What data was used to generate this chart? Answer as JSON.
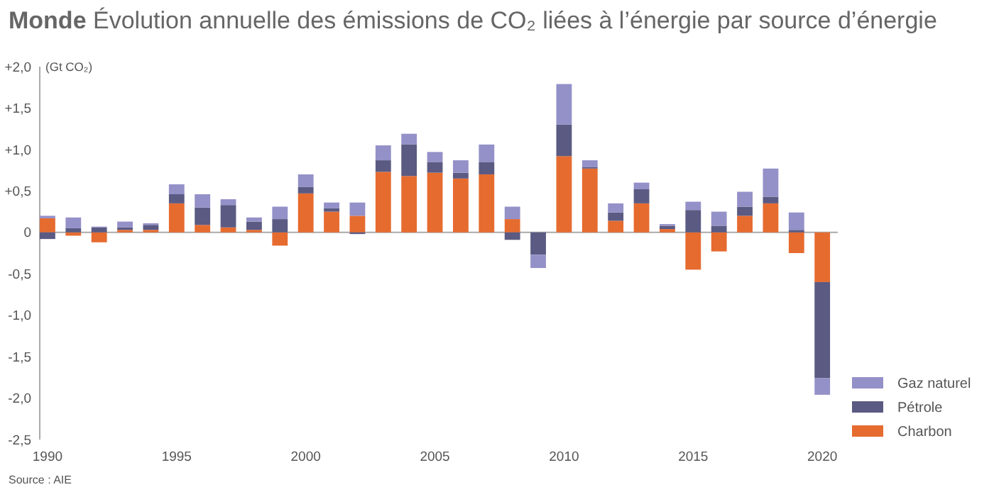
{
  "chart_data": {
    "type": "bar",
    "stacked": true,
    "title": "Monde",
    "subtitle": "Évolution annuelle des émissions de CO₂ liées à l’énergie par source d’énergie",
    "ylabel": "(Gt CO₂)",
    "annotations": [
      "Source : AIE"
    ],
    "x": [
      1990,
      1991,
      1992,
      1993,
      1994,
      1995,
      1996,
      1997,
      1998,
      1999,
      2000,
      2001,
      2002,
      2003,
      2004,
      2005,
      2006,
      2007,
      2008,
      2009,
      2010,
      2011,
      2012,
      2013,
      2014,
      2015,
      2016,
      2017,
      2018,
      2019,
      2020
    ],
    "xlim": [
      1989.7,
      2020.6
    ],
    "xticks": [
      1990,
      1995,
      2000,
      2005,
      2010,
      2015,
      2020
    ],
    "ylim": [
      -2.5,
      2.0
    ],
    "yticks": [
      {
        "value": 2,
        "label": "+2,0"
      },
      {
        "value": 1.5,
        "label": "+1,5"
      },
      {
        "value": 1,
        "label": "+1,0"
      },
      {
        "value": 0.5,
        "label": "+0,5"
      },
      0,
      {
        "value": -0.5,
        "label": "-0,5"
      },
      {
        "value": -1,
        "label": "-1,0"
      },
      {
        "value": -1.5,
        "label": "-1,5"
      },
      {
        "value": -2,
        "label": "-2,0"
      },
      {
        "value": -2.5,
        "label": "-2,5"
      }
    ],
    "legend": "bottom right",
    "series": [
      {
        "name": "Charbon",
        "color": "#e66b2f",
        "values": [
          0.17,
          -0.04,
          -0.12,
          0.03,
          0.03,
          0.35,
          0.09,
          0.06,
          0.03,
          -0.16,
          0.47,
          0.25,
          0.2,
          0.73,
          0.68,
          0.72,
          0.65,
          0.7,
          0.16,
          0,
          0.92,
          0.77,
          0.14,
          0.35,
          0.04,
          -0.45,
          -0.23,
          0.2,
          0.35,
          -0.25,
          -0.6
        ]
      },
      {
        "name": "Pétrole",
        "color": "#5a5a82",
        "values": [
          -0.08,
          0.05,
          0.06,
          0.03,
          0.06,
          0.11,
          0.21,
          0.27,
          0.1,
          0.16,
          0.08,
          0.04,
          -0.02,
          0.14,
          0.38,
          0.13,
          0.07,
          0.15,
          -0.09,
          -0.27,
          0.38,
          0.02,
          0.1,
          0.17,
          0.04,
          0.27,
          0.08,
          0.11,
          0.08,
          0.03,
          -1.16
        ]
      },
      {
        "name": "Gaz naturel",
        "color": "#9490c8",
        "values": [
          0.03,
          0.13,
          0.01,
          0.07,
          0.02,
          0.12,
          0.16,
          0.07,
          0.05,
          0.15,
          0.15,
          0.07,
          0.16,
          0.18,
          0.13,
          0.12,
          0.15,
          0.21,
          0.15,
          -0.16,
          0.49,
          0.08,
          0.11,
          0.08,
          0.02,
          0.1,
          0.17,
          0.18,
          0.34,
          0.21,
          -0.2
        ]
      }
    ]
  }
}
